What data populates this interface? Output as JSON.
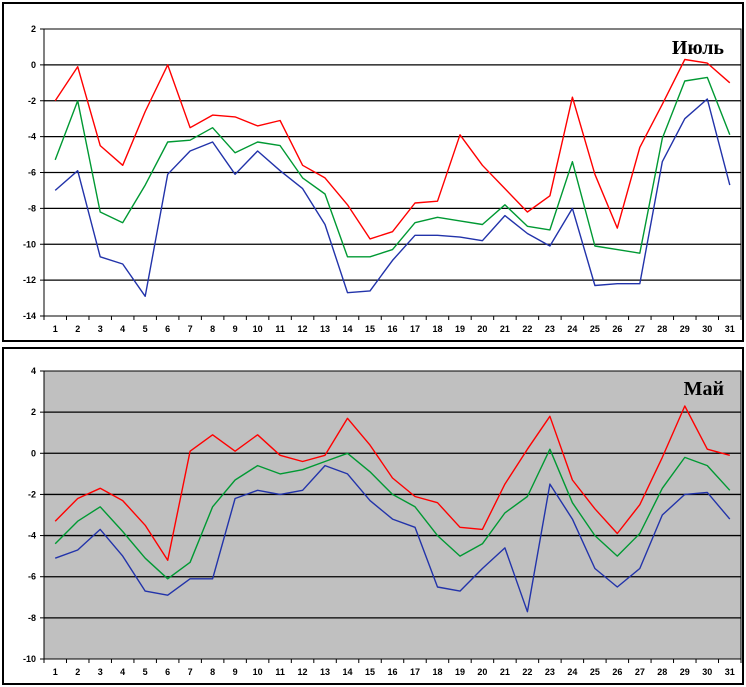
{
  "chart_data": [
    {
      "type": "line",
      "title": "Июль",
      "ylim": [
        -14,
        2
      ],
      "yticks": [
        2,
        0,
        -2,
        -4,
        -6,
        -8,
        -10,
        -12,
        -14
      ],
      "ytick_labels": [
        "2",
        "0",
        "-2",
        "-4",
        "-6",
        "-8",
        "-10",
        "-12",
        "-14"
      ],
      "x": [
        1,
        2,
        3,
        4,
        5,
        6,
        7,
        8,
        9,
        10,
        11,
        12,
        13,
        14,
        15,
        16,
        17,
        18,
        19,
        20,
        21,
        22,
        23,
        24,
        25,
        26,
        27,
        28,
        29,
        30,
        31
      ],
      "xtick_labels": [
        "1",
        "2",
        "3",
        "4",
        "5",
        "6",
        "7",
        "8",
        "9",
        "10",
        "11",
        "12",
        "13",
        "14",
        "15",
        "16",
        "17",
        "18",
        "19",
        "20",
        "21",
        "22",
        "23",
        "24",
        "25",
        "26",
        "27",
        "28",
        "29",
        "30",
        "31"
      ],
      "grid": true,
      "plot_background": "#ffffff",
      "series": [
        {
          "color": "#ff0000",
          "values": [
            -2.0,
            -0.1,
            -4.5,
            -5.6,
            -2.6,
            0.0,
            -3.5,
            -2.8,
            -2.9,
            -3.4,
            -3.1,
            -5.6,
            -6.3,
            -7.8,
            -9.7,
            -9.3,
            -7.7,
            -7.6,
            -3.9,
            -5.6,
            -6.9,
            -8.2,
            -7.3,
            -1.8,
            -6.1,
            -9.1,
            -4.6,
            -2.2,
            0.3,
            0.1,
            -1.0
          ]
        },
        {
          "color": "#009933",
          "values": [
            -5.3,
            -2.0,
            -8.2,
            -8.8,
            -6.7,
            -4.3,
            -4.2,
            -3.5,
            -4.9,
            -4.3,
            -4.5,
            -6.3,
            -7.2,
            -10.7,
            -10.7,
            -10.3,
            -8.8,
            -8.5,
            -8.7,
            -8.9,
            -7.8,
            -9.0,
            -9.2,
            -5.4,
            -10.1,
            -10.3,
            -10.5,
            -4.1,
            -0.9,
            -0.7,
            -3.9
          ]
        },
        {
          "color": "#2233aa",
          "values": [
            -7.0,
            -5.9,
            -10.7,
            -11.1,
            -12.9,
            -6.1,
            -4.8,
            -4.3,
            -6.1,
            -4.8,
            -5.9,
            -6.9,
            -8.9,
            -12.7,
            -12.6,
            -10.9,
            -9.5,
            -9.5,
            -9.6,
            -9.8,
            -8.4,
            -9.4,
            -10.1,
            -8.0,
            -12.3,
            -12.2,
            -12.2,
            -5.4,
            -3.0,
            -1.9,
            -6.7
          ]
        }
      ]
    },
    {
      "type": "line",
      "title": "Май",
      "ylim": [
        -10,
        4
      ],
      "yticks": [
        4,
        2,
        0,
        -2,
        -4,
        -6,
        -8,
        -10
      ],
      "ytick_labels": [
        "4",
        "2",
        "0",
        "-2",
        "-4",
        "-6",
        "-8",
        "-10"
      ],
      "x": [
        1,
        2,
        3,
        4,
        5,
        6,
        7,
        8,
        9,
        10,
        11,
        12,
        13,
        14,
        15,
        16,
        17,
        18,
        19,
        20,
        21,
        22,
        23,
        24,
        25,
        26,
        27,
        28,
        29,
        30,
        31
      ],
      "xtick_labels": [
        "1",
        "2",
        "3",
        "4",
        "5",
        "6",
        "7",
        "8",
        "9",
        "10",
        "11",
        "12",
        "13",
        "14",
        "15",
        "16",
        "17",
        "18",
        "19",
        "20",
        "21",
        "22",
        "23",
        "24",
        "25",
        "26",
        "27",
        "28",
        "29",
        "30",
        "31"
      ],
      "grid": true,
      "plot_background": "#c0c0c0",
      "series": [
        {
          "color": "#ff0000",
          "values": [
            -3.3,
            -2.2,
            -1.7,
            -2.3,
            -3.5,
            -5.2,
            0.1,
            0.9,
            0.1,
            0.9,
            -0.1,
            -0.4,
            -0.1,
            1.7,
            0.4,
            -1.2,
            -2.1,
            -2.4,
            -3.6,
            -3.7,
            -1.5,
            0.2,
            1.8,
            -1.3,
            -2.7,
            -3.9,
            -2.5,
            -0.2,
            2.3,
            0.2,
            -0.1
          ]
        },
        {
          "color": "#009933",
          "values": [
            -4.4,
            -3.3,
            -2.6,
            -3.8,
            -5.1,
            -6.1,
            -5.3,
            -2.6,
            -1.3,
            -0.6,
            -1.0,
            -0.8,
            -0.4,
            0.0,
            -0.9,
            -2.0,
            -2.6,
            -4.0,
            -5.0,
            -4.4,
            -2.9,
            -2.1,
            0.2,
            -2.4,
            -4.0,
            -5.0,
            -3.9,
            -1.7,
            -0.2,
            -0.6,
            -1.8
          ]
        },
        {
          "color": "#2233aa",
          "values": [
            -5.1,
            -4.7,
            -3.7,
            -5.0,
            -6.7,
            -6.9,
            -6.1,
            -6.1,
            -2.2,
            -1.8,
            -2.0,
            -1.8,
            -0.6,
            -1.0,
            -2.3,
            -3.2,
            -3.6,
            -6.5,
            -6.7,
            -5.6,
            -4.6,
            -7.7,
            -1.5,
            -3.2,
            -5.6,
            -6.5,
            -5.6,
            -3.0,
            -2.0,
            -1.9,
            -3.2
          ]
        }
      ]
    }
  ]
}
